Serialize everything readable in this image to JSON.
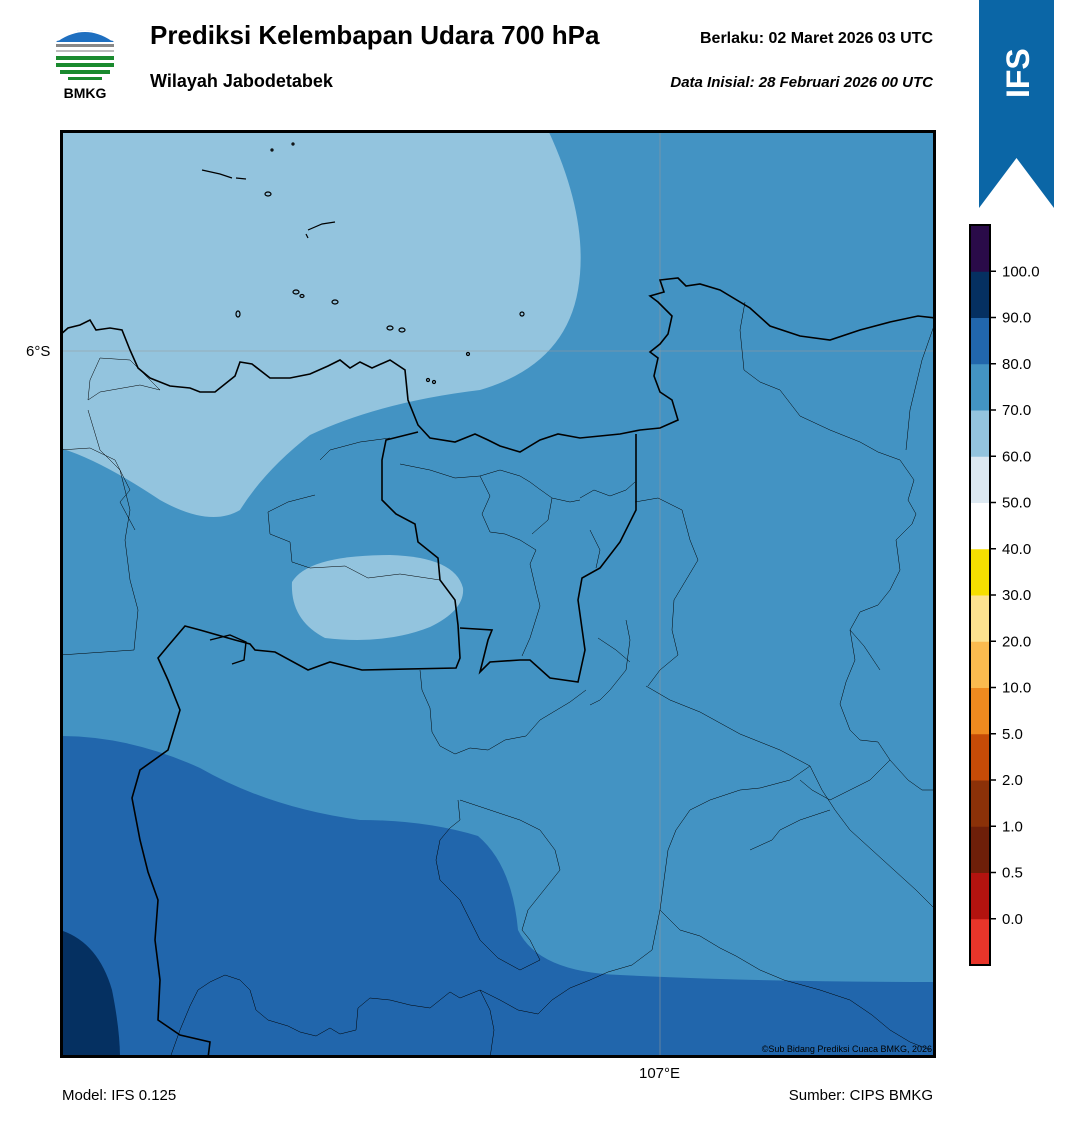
{
  "header": {
    "logo_text": "BMKG",
    "title": "Prediksi Kelembapan Udara 700 hPa",
    "subtitle": "Wilayah Jabodetabek",
    "valid_time": "Berlaku:  02 Maret 2026 03 UTC",
    "init_time": "Data Inisial:  28 Februari 2026 00 UTC"
  },
  "banner": {
    "text": "IFS",
    "color": "#0b66a6"
  },
  "map": {
    "lat_label": "6°S",
    "lon_label": "107°E",
    "copyright": "©Sub Bidang Prediksi Cuaca BMKG, 2026",
    "fill_colors": {
      "band_60_70": "#93c4de",
      "band_70_80": "#4393c3",
      "band_80_90": "#2166ac",
      "band_90_100": "#053061"
    }
  },
  "colorbar": {
    "labels": [
      "0.0",
      "0.5",
      "1.0",
      "2.0",
      "5.0",
      "10.0",
      "20.0",
      "30.0",
      "40.0",
      "50.0",
      "60.0",
      "70.0",
      "80.0",
      "90.0",
      "100.0"
    ],
    "colors": [
      "#e8352a",
      "#b3130f",
      "#6e1f09",
      "#8b3108",
      "#c64b07",
      "#ef8a1f",
      "#fbbb4f",
      "#fde28f",
      "#f6de00",
      "#ffffff",
      "#dde9f2",
      "#93c4de",
      "#4393c3",
      "#2166ac",
      "#053061",
      "#2a0b49"
    ]
  },
  "footer": {
    "model": "Model: IFS 0.125",
    "source": "Sumber: CIPS BMKG"
  }
}
